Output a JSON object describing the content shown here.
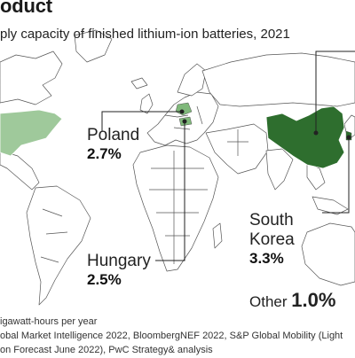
{
  "header": {
    "title": "oduct",
    "subtitle": "ply capacity of finished lithium-ion batteries, 2021"
  },
  "callouts": [
    {
      "country": "Poland",
      "value": "2.7%"
    },
    {
      "country": "Hungary",
      "value": "2.5%"
    },
    {
      "country_line1": "South",
      "country_line2": "Korea",
      "value": "3.3%"
    }
  ],
  "other": {
    "label": "Other",
    "value": "1.0%"
  },
  "footnote": {
    "line1": "igawatt-hours per year",
    "line2": "obal Market Intelligence 2022, BloombergNEF 2022, S&P Global Mobility (Light",
    "line3": "on Forecast June 2022), PwC Strategy& analysis"
  },
  "colors": {
    "china": "#2e6e2e",
    "united_states": "#9fc99b",
    "europe_highlight": "#7fb87a",
    "land_outline": "#555555",
    "leader_line": "#222222"
  }
}
